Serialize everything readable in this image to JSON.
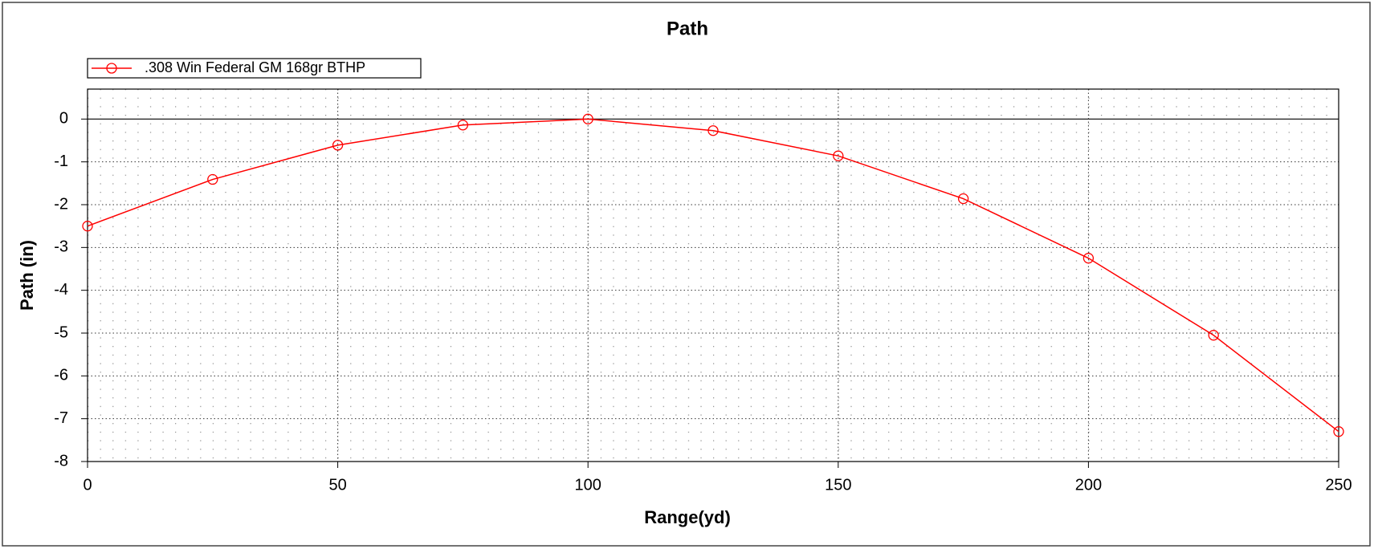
{
  "chart_data": {
    "type": "line",
    "title": "Path",
    "x_label": "Range(yd)",
    "y_label": "Path (in)",
    "x": [
      0,
      25,
      50,
      75,
      100,
      125,
      150,
      175,
      200,
      225,
      250
    ],
    "series": [
      {
        "name": ".308 Win Federal GM 168gr BTHP",
        "color": "#ff0000",
        "values": [
          -2.5,
          -1.41,
          -0.61,
          -0.14,
          0,
          -0.27,
          -0.86,
          -1.86,
          -3.25,
          -5.05,
          -7.3
        ]
      }
    ],
    "xlim": [
      0,
      250
    ],
    "xticks": [
      0,
      50,
      100,
      150,
      200,
      250
    ],
    "ylim": [
      -8,
      0.7
    ],
    "yticks": [
      0,
      -1,
      -2,
      -3,
      -4,
      -5,
      -6,
      -7,
      -8
    ],
    "grid": true,
    "legend": "top-left"
  }
}
